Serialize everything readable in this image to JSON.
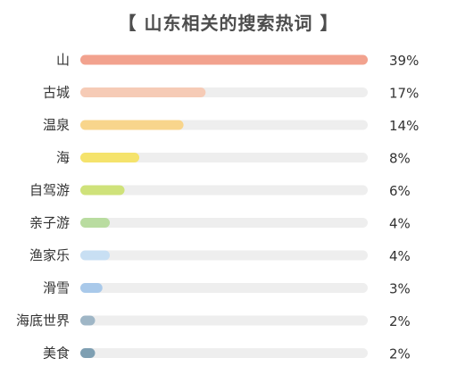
{
  "chart_data": {
    "type": "bar",
    "orientation": "horizontal",
    "title": "【 山东相关的搜索热词 】",
    "categories": [
      "山",
      "古城",
      "温泉",
      "海",
      "自驾游",
      "亲子游",
      "渔家乐",
      "滑雪",
      "海底世界",
      "美食"
    ],
    "values": [
      39,
      17,
      14,
      8,
      6,
      4,
      4,
      3,
      2,
      2
    ],
    "value_labels": [
      "39%",
      "17%",
      "14%",
      "8%",
      "6%",
      "4%",
      "4%",
      "3%",
      "2%",
      "2%"
    ],
    "xlim": [
      0,
      39
    ],
    "grid": false,
    "legend": "none",
    "colors": [
      "#f2a28e",
      "#f6cbb6",
      "#f8d58c",
      "#f5e36c",
      "#cfe27a",
      "#b9dca0",
      "#c8dff3",
      "#a9c9ea",
      "#9fb6c6",
      "#7e9fb2"
    ],
    "track_color": "#eeeeee"
  }
}
